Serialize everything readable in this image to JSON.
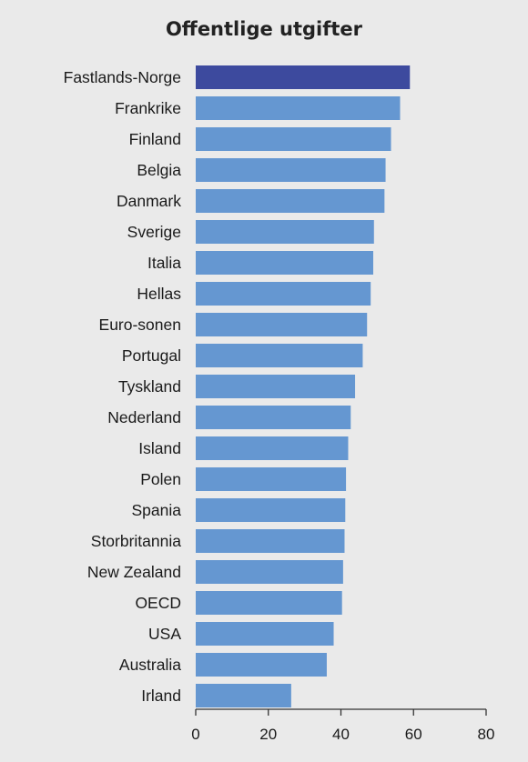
{
  "chart_data": {
    "type": "bar",
    "orientation": "horizontal",
    "title": "Offentlige utgifter",
    "xlabel": "",
    "ylabel": "",
    "categories": [
      "Fastlands-Norge",
      "Frankrike",
      "Finland",
      "Belgia",
      "Danmark",
      "Sverige",
      "Italia",
      "Hellas",
      "Euro-sonen",
      "Portugal",
      "Tyskland",
      "Nederland",
      "Island",
      "Polen",
      "Spania",
      "Storbritannia",
      "New Zealand",
      "OECD",
      "USA",
      "Australia",
      "Irland"
    ],
    "values": [
      59.0,
      56.3,
      53.8,
      52.3,
      52.0,
      49.1,
      48.9,
      48.2,
      47.2,
      46.0,
      43.9,
      42.7,
      42.0,
      41.4,
      41.2,
      41.0,
      40.6,
      40.3,
      38.0,
      36.1,
      26.3
    ],
    "xlim": [
      0,
      80
    ],
    "xticks": [
      "0",
      "20",
      "40",
      "60",
      "80"
    ],
    "grid": false,
    "colors": {
      "highlight": "#3d4a9e",
      "default": "#6597d1",
      "axis": "#333333"
    }
  }
}
